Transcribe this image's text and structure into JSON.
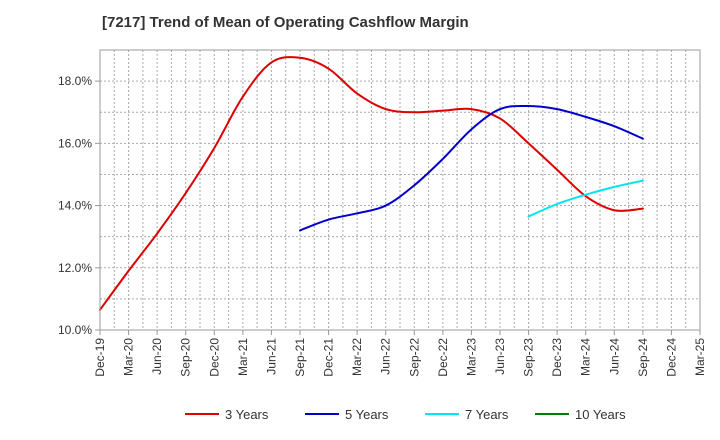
{
  "chart_data": {
    "type": "line",
    "title": "[7217]  Trend of Mean of Operating Cashflow Margin",
    "xlabel": "",
    "ylabel": "",
    "x_categories": [
      "Dec-19",
      "Mar-20",
      "Jun-20",
      "Sep-20",
      "Dec-20",
      "Mar-21",
      "Jun-21",
      "Sep-21",
      "Dec-21",
      "Mar-22",
      "Jun-22",
      "Sep-22",
      "Dec-22",
      "Mar-23",
      "Jun-23",
      "Sep-23",
      "Dec-23",
      "Mar-24",
      "Jun-24",
      "Sep-24",
      "Dec-24",
      "Mar-25"
    ],
    "x_tick_labels": [
      "Dec-19",
      "Mar-20",
      "Jun-20",
      "Sep-20",
      "Dec-20",
      "Mar-21",
      "Jun-21",
      "Sep-21",
      "Dec-21",
      "Mar-22",
      "Jun-22",
      "Sep-22",
      "Dec-22",
      "Mar-23",
      "Jun-23",
      "Sep-23",
      "Dec-23",
      "Mar-24",
      "Jun-24",
      "Sep-24",
      "Dec-24",
      "Mar-25"
    ],
    "ylim": [
      10.0,
      19.0
    ],
    "y_ticks": [
      10.0,
      12.0,
      14.0,
      16.0,
      18.0
    ],
    "y_tick_labels": [
      "10.0%",
      "12.0%",
      "14.0%",
      "16.0%",
      "18.0%"
    ],
    "grid": true,
    "legend_position": "bottom",
    "series": [
      {
        "name": "3 Years",
        "color": "#dd0000",
        "x": [
          "Dec-19",
          "Mar-20",
          "Jun-20",
          "Sep-20",
          "Dec-20",
          "Mar-21",
          "Jun-21",
          "Sep-21",
          "Dec-21",
          "Mar-22",
          "Jun-22",
          "Sep-22",
          "Dec-22",
          "Mar-23",
          "Jun-23",
          "Sep-23",
          "Dec-23",
          "Mar-24",
          "Jun-24",
          "Sep-24"
        ],
        "values": [
          10.65,
          11.9,
          13.1,
          14.4,
          15.85,
          17.5,
          18.6,
          18.75,
          18.4,
          17.6,
          17.1,
          17.0,
          17.05,
          17.1,
          16.8,
          16.0,
          15.15,
          14.3,
          13.85,
          13.9
        ]
      },
      {
        "name": "5 Years",
        "color": "#0000cc",
        "x": [
          "Sep-21",
          "Dec-21",
          "Mar-22",
          "Jun-22",
          "Sep-22",
          "Dec-22",
          "Mar-23",
          "Jun-23",
          "Sep-23",
          "Dec-23",
          "Mar-24",
          "Jun-24",
          "Sep-24"
        ],
        "values": [
          13.2,
          13.55,
          13.75,
          14.0,
          14.65,
          15.5,
          16.45,
          17.1,
          17.2,
          17.1,
          16.85,
          16.55,
          16.15
        ]
      },
      {
        "name": "7 Years",
        "color": "#00e5ee",
        "x": [
          "Sep-23",
          "Dec-23",
          "Mar-24",
          "Jun-24",
          "Sep-24"
        ],
        "values": [
          13.65,
          14.05,
          14.35,
          14.6,
          14.8
        ]
      },
      {
        "name": "10 Years",
        "color": "#008000",
        "x": [],
        "values": []
      }
    ]
  }
}
